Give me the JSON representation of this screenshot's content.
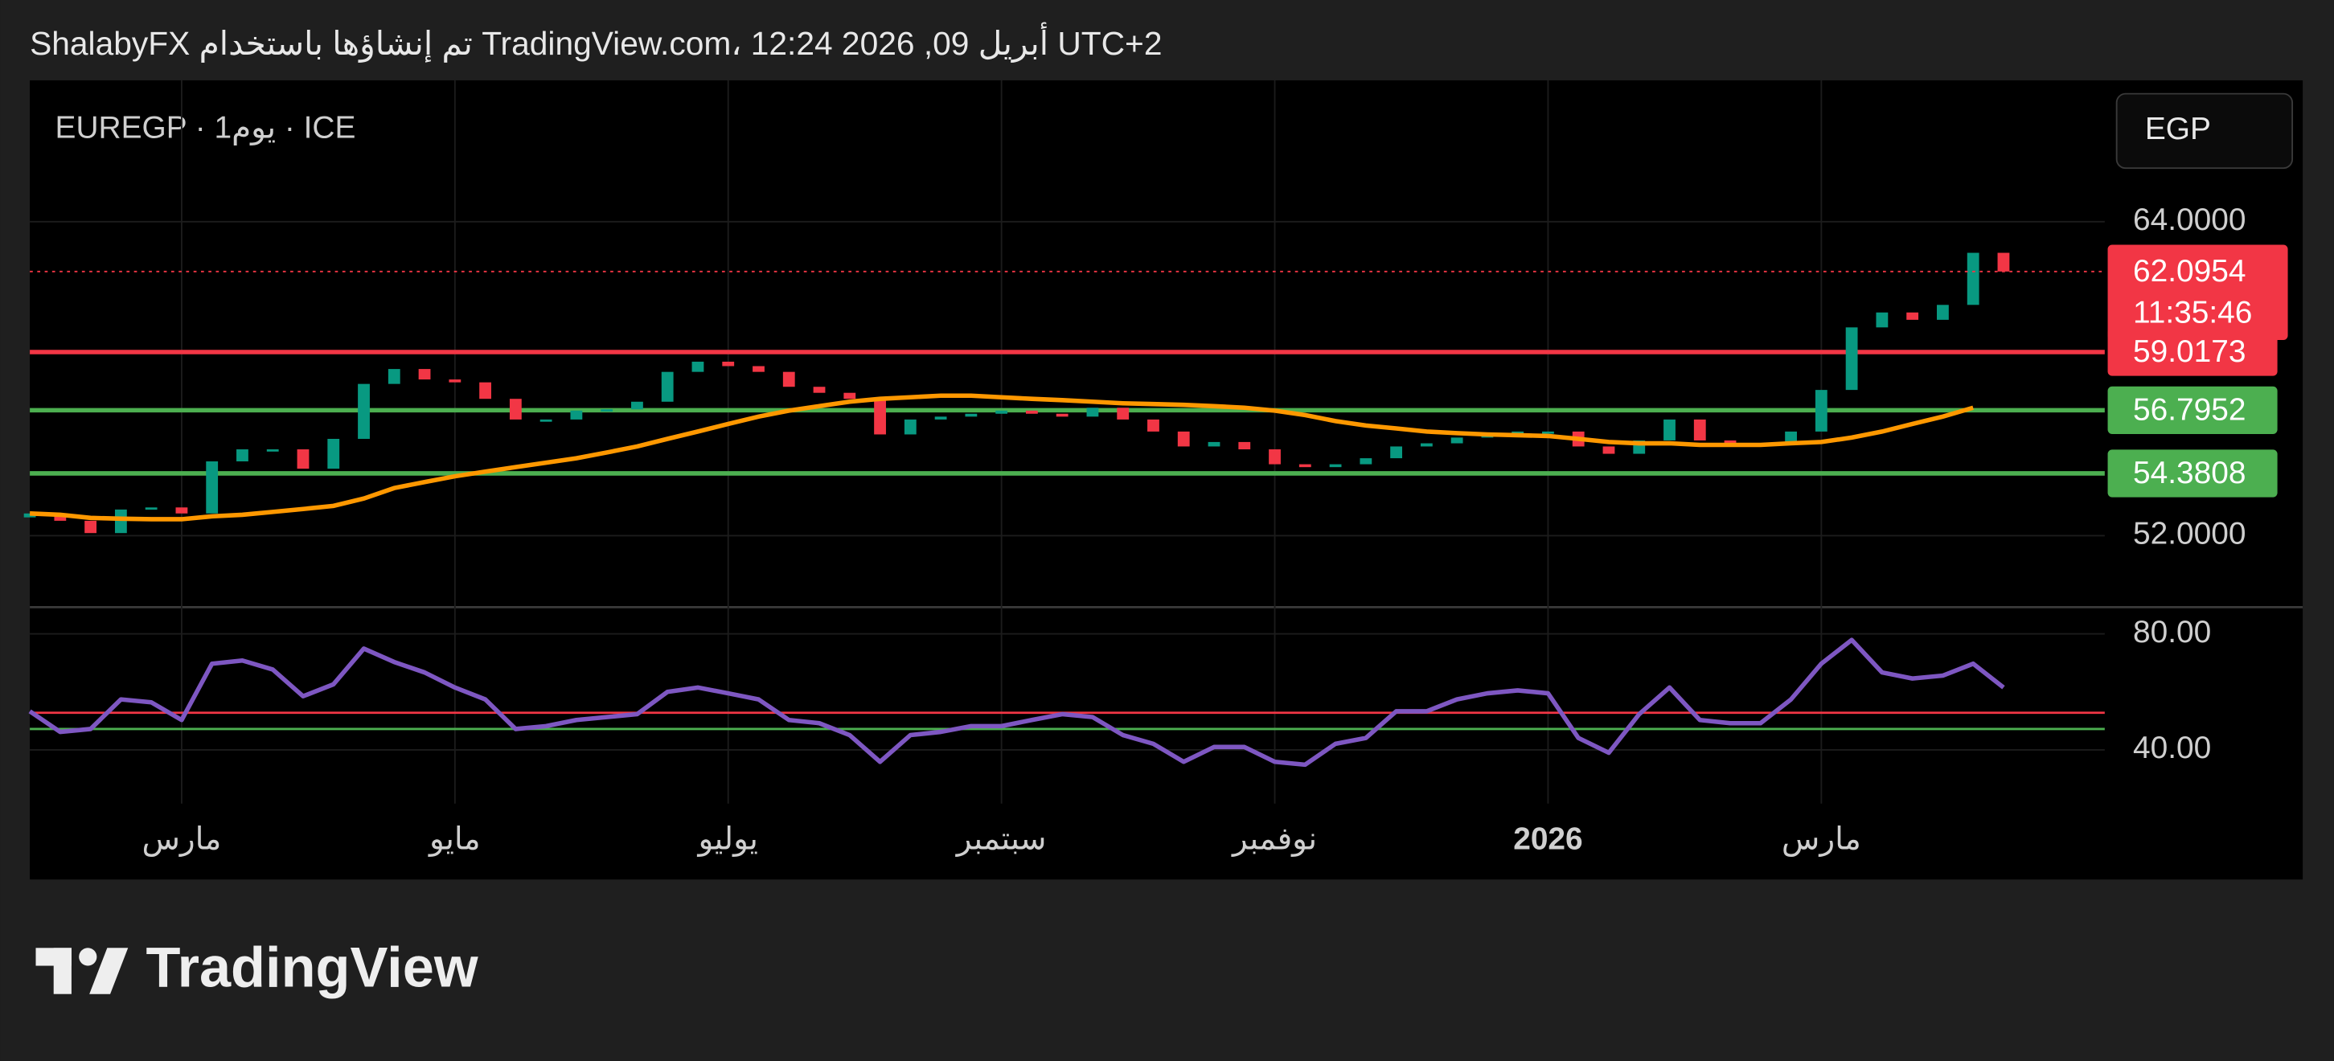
{
  "header": "ShalabyFX تم إنشاؤها باستخدام TradingView.com، 12:24 2026 ,09 أبريل UTC+2",
  "symbol_info": "EUREGP · 1يوم · ICE",
  "currency": "EGP",
  "logo": "TradingView",
  "chart_data": [
    {
      "type": "candlestick",
      "up_color": "#089981",
      "down_color": "#f23645",
      "categories": [
        null,
        null,
        null,
        null,
        null,
        "مارس",
        null,
        null,
        null,
        null,
        null,
        null,
        null,
        null,
        "مايو",
        null,
        null,
        null,
        null,
        null,
        null,
        null,
        null,
        "يوليو",
        null,
        null,
        null,
        null,
        null,
        null,
        null,
        null,
        "سبتمبر",
        null,
        null,
        null,
        null,
        null,
        null,
        null,
        null,
        "نوفمبر",
        null,
        null,
        null,
        null,
        null,
        null,
        null,
        null,
        "2026",
        null,
        null,
        null,
        null,
        null,
        null,
        null,
        null,
        "مارس",
        null,
        null,
        null,
        null,
        null,
        null
      ],
      "open": [
        52.7,
        52.85,
        52.57,
        52.1,
        53.0,
        53.08,
        52.85,
        54.84,
        55.3,
        55.3,
        54.56,
        55.7,
        57.8,
        58.37,
        57.97,
        57.86,
        57.23,
        56.44,
        56.44,
        56.78,
        56.83,
        57.12,
        58.26,
        58.65,
        58.48,
        58.26,
        57.69,
        57.46,
        57.23,
        55.87,
        56.44,
        56.55,
        56.66,
        56.78,
        56.66,
        56.55,
        56.89,
        56.44,
        55.98,
        55.41,
        55.58,
        55.3,
        54.73,
        54.62,
        54.73,
        54.96,
        55.41,
        55.53,
        55.75,
        55.87,
        55.98,
        55.98,
        55.41,
        55.13,
        55.64,
        56.44,
        55.64,
        55.53,
        55.53,
        55.98,
        57.57,
        59.96,
        60.53,
        60.25,
        60.82,
        62.81
      ],
      "close": [
        52.85,
        52.57,
        52.1,
        53.0,
        53.08,
        52.85,
        54.84,
        55.3,
        55.3,
        54.56,
        55.7,
        57.8,
        58.37,
        57.97,
        57.86,
        57.23,
        56.44,
        56.44,
        56.78,
        56.83,
        57.12,
        58.26,
        58.65,
        58.48,
        58.26,
        57.69,
        57.46,
        57.23,
        55.87,
        56.44,
        56.55,
        56.66,
        56.78,
        56.66,
        56.55,
        56.89,
        56.44,
        55.98,
        55.41,
        55.58,
        55.3,
        54.73,
        54.62,
        54.73,
        54.96,
        55.41,
        55.53,
        55.75,
        55.87,
        55.98,
        55.98,
        55.41,
        55.13,
        55.64,
        56.44,
        55.64,
        55.53,
        55.53,
        55.98,
        57.57,
        59.96,
        60.53,
        60.25,
        60.82,
        62.81,
        62.0954
      ],
      "ma": {
        "color": "#ff9800",
        "values": [
          52.85,
          52.8,
          52.68,
          52.65,
          52.63,
          52.63,
          52.74,
          52.8,
          52.91,
          53.02,
          53.14,
          53.42,
          53.82,
          54.05,
          54.27,
          54.45,
          54.62,
          54.79,
          54.96,
          55.18,
          55.41,
          55.7,
          55.98,
          56.27,
          56.55,
          56.78,
          56.95,
          57.12,
          57.23,
          57.29,
          57.35,
          57.35,
          57.29,
          57.23,
          57.18,
          57.12,
          57.06,
          57.03,
          57.0,
          56.95,
          56.89,
          56.78,
          56.61,
          56.38,
          56.21,
          56.1,
          55.98,
          55.92,
          55.87,
          55.84,
          55.81,
          55.7,
          55.58,
          55.53,
          55.53,
          55.47,
          55.47,
          55.47,
          55.53,
          55.58,
          55.75,
          55.98,
          56.27,
          56.55,
          56.89,
          null
        ]
      },
      "ylim": [
        49.27,
        69.4
      ],
      "yticks": [
        {
          "value": 64,
          "label": "64.0000"
        },
        {
          "value": 52,
          "label": "52.0000"
        }
      ],
      "grid": true,
      "hlines": [
        {
          "value": 59.0173,
          "color": "#f23645"
        },
        {
          "value": 56.7952,
          "color": "#4caf50"
        },
        {
          "value": 54.3808,
          "color": "#4caf50"
        }
      ],
      "last_price": {
        "value": 62.0954,
        "countdown": "11:35:46",
        "color": "#f23645"
      }
    },
    {
      "type": "line",
      "color": "#7e57c2",
      "values": [
        53.3,
        46.2,
        47.2,
        57.4,
        56.4,
        50.3,
        69.7,
        70.8,
        67.7,
        58.5,
        62.6,
        74.9,
        70.3,
        66.7,
        61.5,
        57.4,
        47.2,
        48.2,
        50.3,
        51.3,
        52.3,
        60,
        61.5,
        59.5,
        57.4,
        50.3,
        49.2,
        45.1,
        35.9,
        45.1,
        46.2,
        48.2,
        48.2,
        50.3,
        52.3,
        51.3,
        45.1,
        42.1,
        35.9,
        41,
        41,
        35.9,
        34.9,
        42.1,
        44.1,
        53.3,
        53.3,
        57.4,
        59.5,
        60.5,
        59.5,
        44.1,
        39,
        52.3,
        61.5,
        50.3,
        49.2,
        49.2,
        57.4,
        69.7,
        77.9,
        66.7,
        64.6,
        65.6,
        69.7,
        61.5
      ],
      "ylim": [
        21.5,
        89.2
      ],
      "yticks": [
        {
          "value": 80,
          "label": "80.00"
        },
        {
          "value": 40,
          "label": "40.00"
        }
      ],
      "grid": true,
      "hlines": [
        {
          "value": 52.8,
          "color": "#f23645"
        },
        {
          "value": 47.2,
          "color": "#4caf50"
        }
      ]
    }
  ]
}
